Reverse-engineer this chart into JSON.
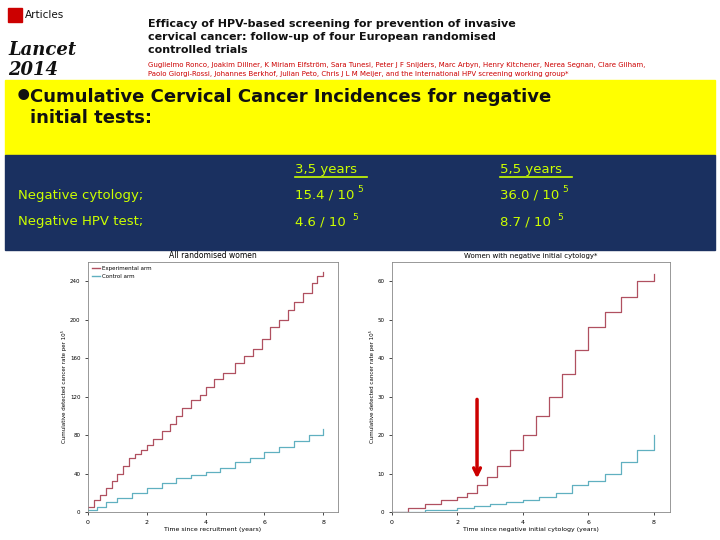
{
  "bg_color": "#ffffff",
  "lancet_text": "Lancet",
  "year_text": "2014",
  "articles_text": "Articles",
  "article_title_line1": "Efficacy of HPV-based screening for prevention of invasive",
  "article_title_line2": "cervical cancer: follow-up of four European randomised",
  "article_title_line3": "controlled trials",
  "authors_line1": "Guglielmo Ronco, Joakim Dillner, K Miriam Elfström, Sara Tunesi, Peter J F Snijders, Marc Arbyn, Henry Kitchener, Nerea Segnan, Clare Gilham,",
  "authors_line2": "Paolo Giorgi-Rossi, Johannes Berkhof, Julian Peto, Chris J L M Meijer, and the International HPV screening working group*",
  "red_color": "#cc0000",
  "bullet_bg": "#ffff00",
  "bullet_text_line1": "Cumulative Cervical Cancer Incidences for negative",
  "bullet_text_line2": "initial tests:",
  "table_bg": "#1a3060",
  "table_text_color": "#ccff00",
  "col2_header": "3,5 years",
  "col3_header": "5,5 years",
  "row1_label": "Negative cytology;",
  "row1_col2": "15.4 / 10",
  "row1_col2_sup": "5",
  "row1_col3": "36.0 / 10",
  "row1_col3_sup": "5",
  "row2_label": "Negative HPV test;",
  "row2_col2": "4.6 / 10",
  "row2_col2_sup": "5",
  "row2_col3": "8.7 / 10",
  "row2_col3_sup": "5",
  "arrow_color": "#cc0000",
  "left_graph_title": "All randomised women",
  "right_graph_title": "Women with negative initial cytology*",
  "legend_exp": "Experimental arm",
  "legend_ctrl": "Control arm",
  "xlabel_left": "Time since recruitment (years)",
  "xlabel_right": "Time since negative initial cytology (years)",
  "ylabel": "Cumulative detected cancer rate per 10⁵",
  "exp_color": "#b05060",
  "ctrl_color": "#60b0c0"
}
